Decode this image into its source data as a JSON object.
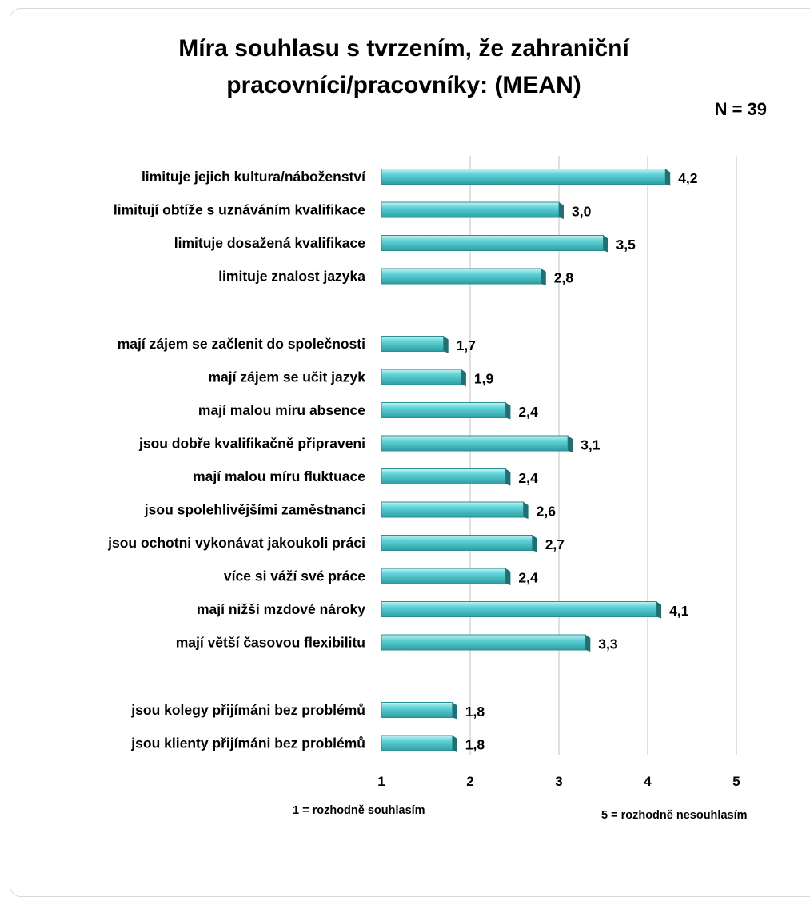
{
  "chart_data": {
    "type": "bar",
    "orientation": "horizontal",
    "title": "Míra souhlasu s tvrzením, že zahraniční pracovníci/pracovníky: (MEAN)",
    "note": "N = 39",
    "categories": [
      "limituje jejich kultura/náboženství",
      "limitují obtíže s uznáváním kvalifikace",
      "limituje dosažená kvalifikace",
      "limituje znalost jazyka",
      "mají zájem se začlenit do společnosti",
      "mají zájem se učit jazyk",
      "mají malou míru absence",
      "jsou dobře kvalifikačně připraveni",
      "mají malou míru fluktuace",
      "jsou spolehlivějšími zaměstnanci",
      "jsou ochotni vykonávat jakoukoli práci",
      "více si váží své práce",
      "mají nižší mzdové nároky",
      "mají větší časovou flexibilitu",
      "jsou kolegy přijímáni bez problémů",
      "jsou klienty přijímáni bez problémů"
    ],
    "values": [
      4.2,
      3.0,
      3.5,
      2.8,
      1.7,
      1.9,
      2.4,
      3.1,
      2.4,
      2.6,
      2.7,
      2.4,
      4.1,
      3.3,
      1.8,
      1.8
    ],
    "value_labels": [
      "4,2",
      "3,0",
      "3,5",
      "2,8",
      "1,7",
      "1,9",
      "2,4",
      "3,1",
      "2,4",
      "2,6",
      "2,7",
      "2,4",
      "4,1",
      "3,3",
      "1,8",
      "1,8"
    ],
    "groups": [
      [
        0,
        1,
        2,
        3
      ],
      [
        4,
        5,
        6,
        7,
        8,
        9,
        10,
        11,
        12,
        13
      ],
      [
        14,
        15
      ]
    ],
    "xlim": [
      1,
      5
    ],
    "xticks": [
      "1",
      "2",
      "3",
      "4",
      "5"
    ],
    "scale_min_label": "1 = rozhodně souhlasím",
    "scale_max_label": "5 = rozhodně nesouhlasím",
    "grid": true,
    "legend": "none",
    "bar_color": "#4fc8cc"
  }
}
